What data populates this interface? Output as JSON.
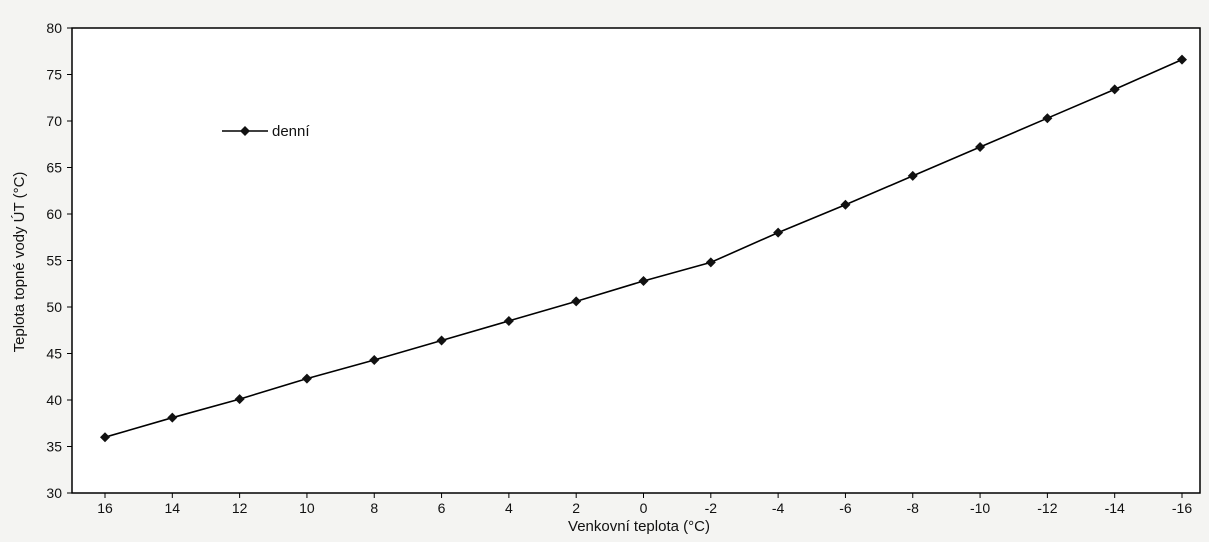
{
  "chart_data": {
    "type": "line",
    "title": "",
    "xlabel": "Venkovní teplota (°C)",
    "ylabel": "Teplota topné vody ÚT (°C)",
    "x": [
      16,
      14,
      12,
      10,
      8,
      6,
      4,
      2,
      0,
      -2,
      -4,
      -6,
      -8,
      -10,
      -12,
      -14,
      -16
    ],
    "x_tick_labels": [
      "16",
      "14",
      "12",
      "10",
      "8",
      "6",
      "4",
      "2",
      "0",
      "-2",
      "-4",
      "-6",
      "-8",
      "-10",
      "-12",
      "-14",
      "-16"
    ],
    "y_ticks": [
      "30",
      "35",
      "40",
      "45",
      "50",
      "55",
      "60",
      "65",
      "70",
      "75",
      "80"
    ],
    "ylim": [
      30,
      80
    ],
    "x_reversed": true,
    "grid": false,
    "legend_position": "upper-left",
    "series": [
      {
        "name": "denní",
        "marker": "diamond",
        "color": "#000000",
        "values": [
          36.0,
          38.1,
          40.1,
          42.3,
          44.3,
          46.4,
          48.5,
          50.6,
          52.8,
          54.8,
          58.0,
          61.0,
          64.1,
          67.2,
          70.3,
          73.4,
          76.6
        ]
      }
    ]
  }
}
